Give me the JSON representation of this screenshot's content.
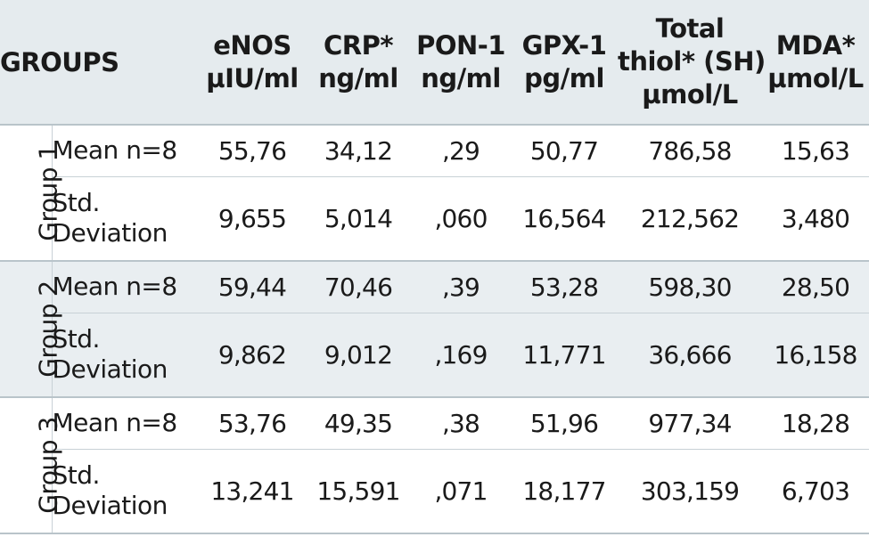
{
  "header": {
    "groups_label": "GROUPS",
    "columns": [
      {
        "line1": "eNOS",
        "line2": "µIU/ml",
        "line3": ""
      },
      {
        "line1": "CRP*",
        "line2": "ng/ml",
        "line3": ""
      },
      {
        "line1": "PON-1",
        "line2": "ng/ml",
        "line3": ""
      },
      {
        "line1": "GPX-1",
        "line2": "pg/ml",
        "line3": ""
      },
      {
        "line1": "Total",
        "line2": "thiol* (SH)",
        "line3": "µmol/L"
      },
      {
        "line1": "MDA*",
        "line2": "µmol/L",
        "line3": ""
      }
    ]
  },
  "groups": [
    {
      "name": "Group 1",
      "mean_label": "Mean n=8",
      "std_label_line1": "Std.",
      "std_label_line2": "Deviation",
      "mean": [
        "55,76",
        "34,12",
        ",29",
        "50,77",
        "786,58",
        "15,63"
      ],
      "std": [
        "9,655",
        "5,014",
        ",060",
        "16,564",
        "212,562",
        "3,480"
      ]
    },
    {
      "name": "Group 2",
      "mean_label": "Mean n=8",
      "std_label_line1": "Std.",
      "std_label_line2": "Deviation",
      "mean": [
        "59,44",
        "70,46",
        ",39",
        "53,28",
        "598,30",
        "28,50"
      ],
      "std": [
        "9,862",
        "9,012",
        ",169",
        "11,771",
        "36,666",
        "16,158"
      ]
    },
    {
      "name": "Group 3",
      "mean_label": "Mean n=8",
      "std_label_line1": "Std.",
      "std_label_line2": "Deviation",
      "mean": [
        "53,76",
        "49,35",
        ",38",
        "51,96",
        "977,34",
        "18,28"
      ],
      "std": [
        "13,241",
        "15,591",
        ",071",
        "18,177",
        "303,159",
        "6,703"
      ]
    }
  ]
}
